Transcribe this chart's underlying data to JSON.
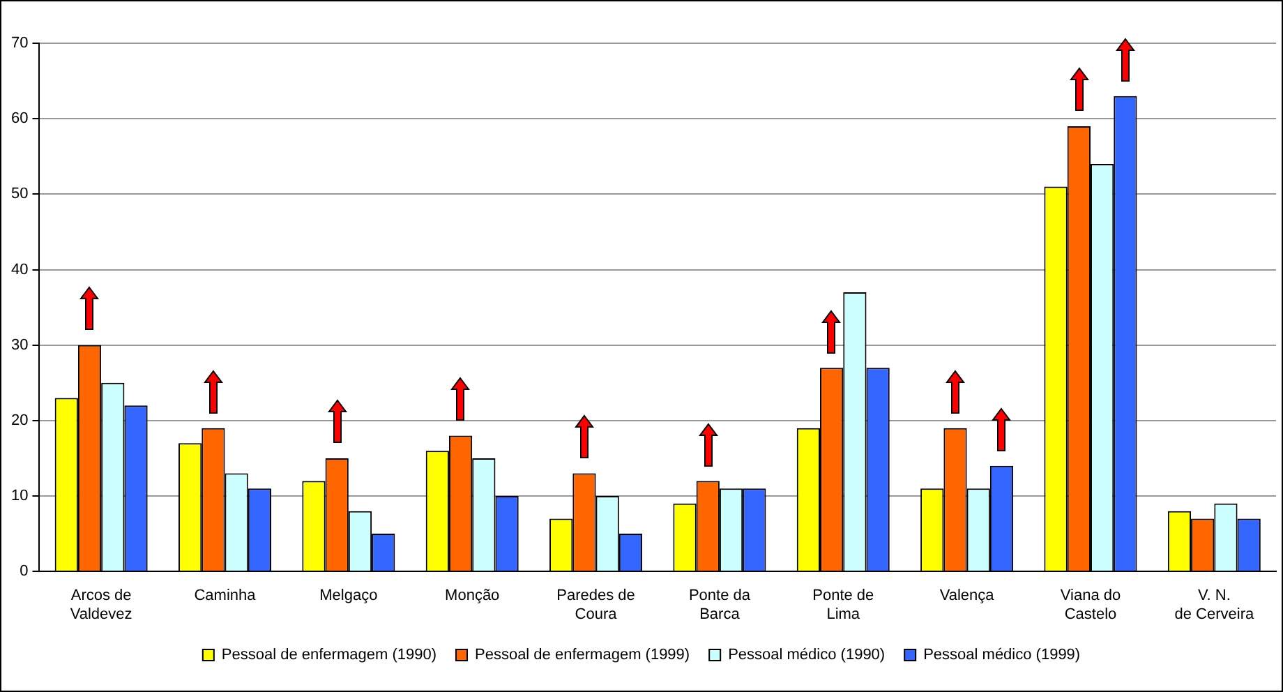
{
  "chart_data": {
    "type": "bar",
    "categories": [
      "Arcos de Valdevez",
      "Caminha",
      "Melgaço",
      "Monção",
      "Paredes de Coura",
      "Ponte da Barca",
      "Ponte de Lima",
      "Valença",
      "Viana do Castelo",
      "V. N. de Cerveira"
    ],
    "series": [
      {
        "name": "Pessoal de enfermagem (1990)",
        "color": "#ffff00",
        "values": [
          23,
          17,
          12,
          16,
          7,
          9,
          19,
          11,
          51,
          8
        ]
      },
      {
        "name": "Pessoal de enfermagem (1999)",
        "color": "#ff6600",
        "values": [
          30,
          19,
          15,
          18,
          13,
          12,
          27,
          19,
          59,
          7
        ]
      },
      {
        "name": "Pessoal médico (1990)",
        "color": "#ccffff",
        "values": [
          25,
          13,
          8,
          15,
          10,
          11,
          37,
          11,
          54,
          9
        ]
      },
      {
        "name": "Pessoal médico (1999)",
        "color": "#3366ff",
        "values": [
          22,
          11,
          5,
          10,
          5,
          11,
          27,
          14,
          63,
          7
        ]
      }
    ],
    "ylim": [
      0,
      70
    ],
    "yticks": [
      0,
      10,
      20,
      30,
      40,
      50,
      60,
      70
    ],
    "grid": "y",
    "legend": "bottom"
  }
}
